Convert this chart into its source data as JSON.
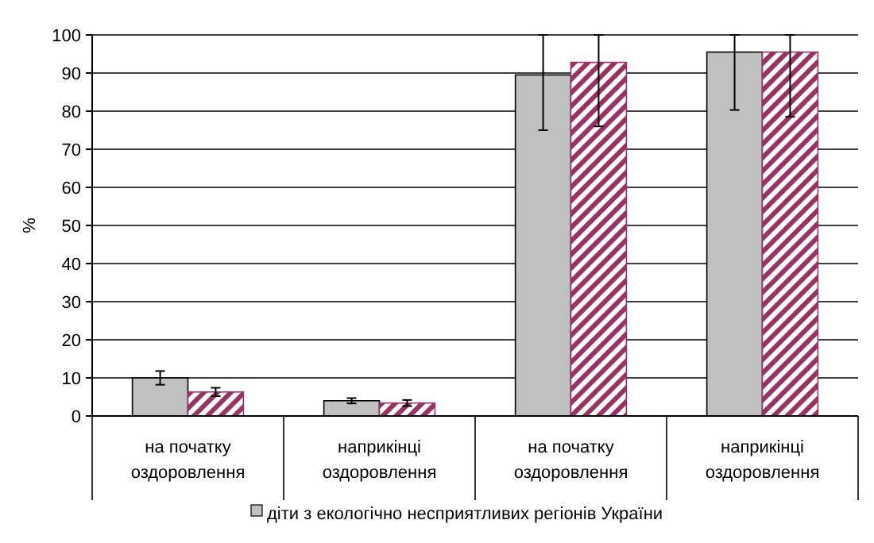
{
  "chart_data": {
    "type": "bar",
    "ylabel": "%",
    "categories": [
      "на початку оздоровлення",
      "наприкінці оздоровлення",
      "на початку оздоровлення",
      "наприкінці оздоровлення"
    ],
    "series": [
      {
        "name": "діти з екологічно несприятливих регіонів України",
        "color": "#c0c0c0",
        "values": [
          10,
          4,
          89.5,
          95.5
        ],
        "errors": [
          1.8,
          0.7,
          [
            75,
            100
          ],
          [
            80.3,
            100
          ]
        ]
      },
      {
        "color": "#993366",
        "values": [
          6.3,
          3.4,
          92.8,
          95.5
        ],
        "errors": [
          1.1,
          0.8,
          [
            76,
            100
          ],
          [
            78.5,
            100
          ]
        ]
      }
    ],
    "ylim": [
      0,
      100
    ],
    "yticks": [
      0,
      10,
      20,
      30,
      40,
      50,
      60,
      70,
      80,
      90,
      100
    ],
    "grid": "y",
    "legend": "bottom"
  }
}
